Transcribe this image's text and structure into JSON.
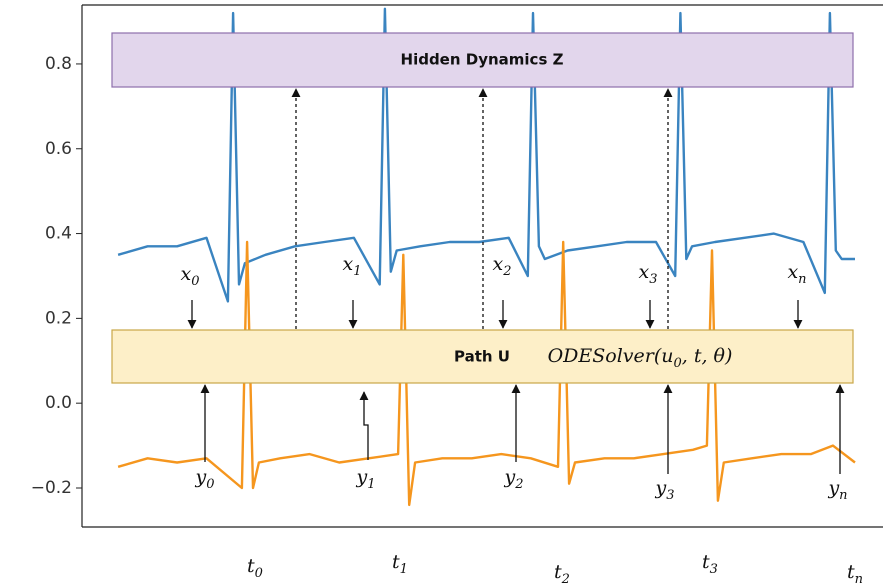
{
  "chart_data": {
    "type": "line",
    "ylim": [
      -0.292,
      0.939
    ],
    "xlim": [
      -4.9,
      103.8
    ],
    "yticks": [
      0.8,
      0.6,
      0.4,
      0.2,
      {
        "value": 0,
        "label": "0.0"
      },
      {
        "value": -0.2,
        "label": "−0.2"
      }
    ],
    "series": [
      {
        "color": "#3a84c0",
        "x": [
          0,
          4,
          8,
          12,
          14.9,
          15.6,
          16.4,
          17.2,
          20,
          24,
          28,
          32,
          35.5,
          36.2,
          37,
          37.8,
          41,
          45,
          49,
          53,
          55.6,
          56.3,
          57.1,
          57.9,
          61,
          65,
          69,
          73,
          75.6,
          76.3,
          77.1,
          77.9,
          81,
          85,
          89,
          93,
          95.9,
          96.6,
          97.4,
          98.2,
          100
        ],
        "values": [
          0.35,
          0.37,
          0.37,
          0.39,
          0.24,
          0.92,
          0.28,
          0.33,
          0.35,
          0.37,
          0.38,
          0.39,
          0.28,
          0.93,
          0.31,
          0.36,
          0.37,
          0.38,
          0.38,
          0.39,
          0.3,
          0.92,
          0.37,
          0.34,
          0.36,
          0.37,
          0.38,
          0.38,
          0.3,
          0.92,
          0.34,
          0.37,
          0.38,
          0.39,
          0.4,
          0.38,
          0.26,
          0.92,
          0.36,
          0.34,
          0.34
        ]
      },
      {
        "color": "#f5961e",
        "x": [
          0,
          4,
          8,
          12,
          16.8,
          17.5,
          18.3,
          19.1,
          22,
          26,
          30,
          34,
          38,
          38.7,
          39.5,
          40.3,
          44,
          48,
          52,
          56,
          59.7,
          60.4,
          61.2,
          62,
          66,
          70,
          74,
          78,
          79.9,
          80.6,
          81.4,
          82.2,
          86,
          90,
          94,
          97,
          100
        ],
        "values": [
          -0.15,
          -0.13,
          -0.14,
          -0.13,
          -0.2,
          0.38,
          -0.2,
          -0.14,
          -0.13,
          -0.12,
          -0.14,
          -0.13,
          -0.12,
          0.35,
          -0.24,
          -0.14,
          -0.13,
          -0.13,
          -0.12,
          -0.13,
          -0.15,
          0.38,
          -0.19,
          -0.14,
          -0.13,
          -0.13,
          -0.12,
          -0.11,
          -0.1,
          0.36,
          -0.23,
          -0.14,
          -0.13,
          -0.12,
          -0.12,
          -0.1,
          -0.14
        ]
      }
    ]
  },
  "diagram": {
    "hidden_box": "Hidden Dynamics Z",
    "path_box": "Path U",
    "solver": {
      "before": "ODESolver(u",
      "sub": "0",
      "after": ", t, θ)"
    },
    "inputs": [
      {
        "symbol": "x",
        "sub": "0"
      },
      {
        "symbol": "x",
        "sub": "1"
      },
      {
        "symbol": "x",
        "sub": "2"
      },
      {
        "symbol": "x",
        "sub": "3"
      },
      {
        "symbol": "x",
        "sub": "n"
      }
    ],
    "outputs": [
      {
        "symbol": "y",
        "sub": "0"
      },
      {
        "symbol": "y",
        "sub": "1"
      },
      {
        "symbol": "y",
        "sub": "2"
      },
      {
        "symbol": "y",
        "sub": "3"
      },
      {
        "symbol": "y",
        "sub": "n"
      }
    ],
    "times": [
      {
        "symbol": "t",
        "sub": "0"
      },
      {
        "symbol": "t",
        "sub": "1"
      },
      {
        "symbol": "t",
        "sub": "2"
      },
      {
        "symbol": "t",
        "sub": "3"
      },
      {
        "symbol": "t",
        "sub": "n"
      }
    ]
  }
}
